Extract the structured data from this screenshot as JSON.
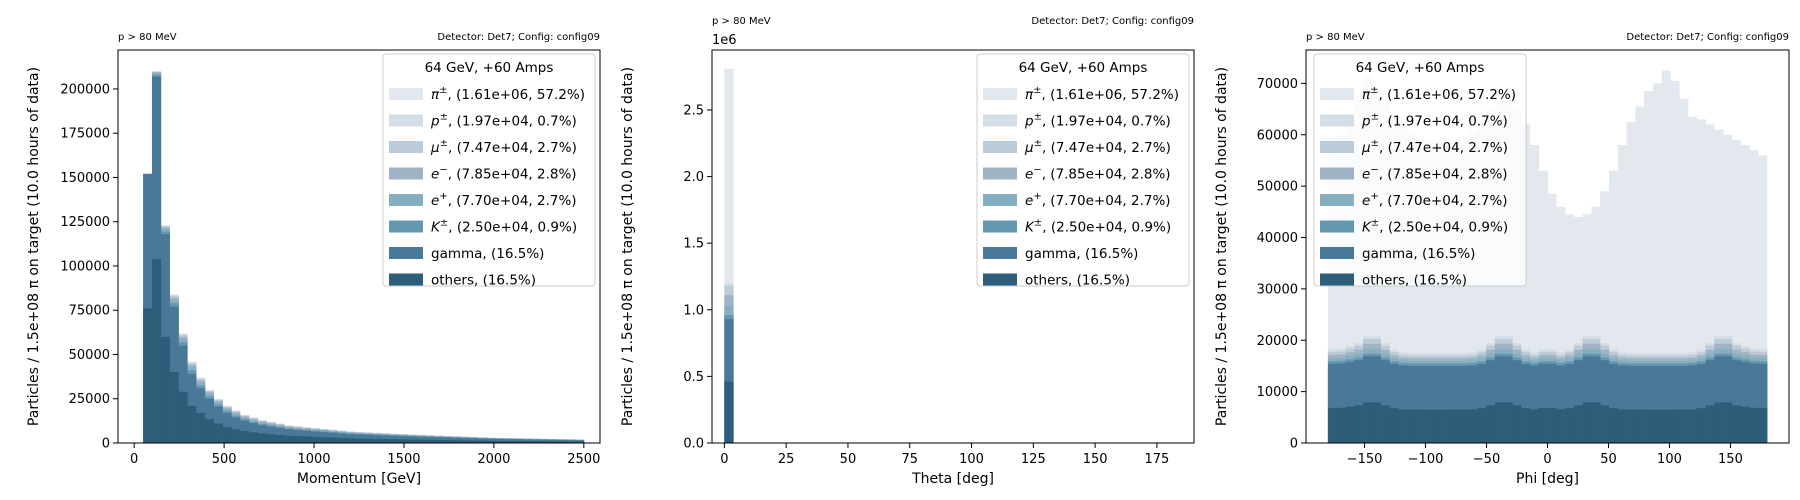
{
  "figure": {
    "legend_title": "64 GeV, +60 Amps",
    "corner_left": "p > 80 MeV",
    "corner_right": "Detector: Det7; Config: config09",
    "ylabel": "Particles / 1.5e+08 π on target (10.0 hours of data)"
  },
  "legend_entries": [
    {
      "sym": "π",
      "sup": "±",
      "text": ", (1.61e+06, 57.2%)",
      "color": "#e2e8ee"
    },
    {
      "sym": "p",
      "sup": "±",
      "text": ", (1.97e+04, 0.7%)",
      "color": "#d3dde6"
    },
    {
      "sym": "μ",
      "sup": "±",
      "text": ", (7.47e+04, 2.7%)",
      "color": "#bccbd8"
    },
    {
      "sym": "e",
      "sup": "−",
      "text": ", (7.85e+04, 2.8%)",
      "color": "#a0b3c6"
    },
    {
      "sym": "e",
      "sup": "+",
      "text": ", (7.70e+04, 2.7%)",
      "color": "#88afbf"
    },
    {
      "sym": "K",
      "sup": "±",
      "text": ", (2.50e+04, 0.9%)",
      "color": "#6497b0"
    },
    {
      "sym": "",
      "sup": "",
      "text": "gamma, (16.5%)",
      "color": "#4a7899"
    },
    {
      "sym": "",
      "sup": "",
      "text": "others, (16.5%)",
      "color": "#2d5d78"
    }
  ],
  "chart_data": [
    {
      "type": "bar",
      "stacked": true,
      "xlabel": "Momentum [GeV]",
      "xlim": [
        -90,
        2590
      ],
      "ylim": [
        0,
        222000
      ],
      "xticks": [
        0,
        500,
        1000,
        1500,
        2000,
        2500
      ],
      "yticks": [
        0,
        25000,
        50000,
        75000,
        100000,
        125000,
        150000,
        175000,
        200000
      ],
      "ytick_labels": [
        "0",
        "25000",
        "50000",
        "75000",
        "100000",
        "125000",
        "150000",
        "175000",
        "200000"
      ],
      "legend_position": "upper right",
      "bin_edges_start": 50,
      "bin_width": 49,
      "totals": [
        152000,
        210000,
        123000,
        84000,
        62000,
        46000,
        37000,
        30000,
        25000,
        21000,
        18500,
        16000,
        14500,
        13000,
        12000,
        11000,
        10000,
        9500,
        9000,
        8500,
        8000,
        7500,
        7000,
        6500,
        6200,
        6000,
        5700,
        5500,
        5200,
        5000,
        4800,
        4600,
        4400,
        4200,
        4000,
        3800,
        3600,
        3400,
        3200,
        3000,
        2900,
        2800,
        2700,
        2600,
        2500,
        2400,
        2300,
        2200,
        2100,
        2000
      ],
      "cumulative_layers": [
        {
          "name": "others",
          "values": [
            76000,
            104000,
            60000,
            40000,
            29000,
            21000,
            17000,
            13500,
            11000,
            9000,
            7800,
            6800,
            6000,
            5400,
            5000,
            4500,
            4100,
            3900,
            3700,
            3500,
            3300,
            3100,
            2900,
            2700,
            2550,
            2450,
            2350,
            2250,
            2150,
            2050,
            1950,
            1900,
            1800,
            1720,
            1650,
            1560,
            1480,
            1400,
            1320,
            1240,
            1190,
            1150,
            1110,
            1070,
            1030,
            990,
            950,
            900,
            860,
            820
          ]
        },
        {
          "name": "gamma",
          "values": [
            152000,
            207000,
            118000,
            77000,
            55000,
            39000,
            31000,
            25000,
            20500,
            17000,
            14500,
            12600,
            11200,
            10000,
            9300,
            8500,
            7700,
            7300,
            6900,
            6500,
            6150,
            5800,
            5400,
            5050,
            4800,
            4650,
            4400,
            4250,
            4050,
            3850,
            3700,
            3550,
            3400,
            3250,
            3100,
            2950,
            2800,
            2650,
            2500,
            2350,
            2250,
            2180,
            2100,
            2020,
            1950,
            1870,
            1790,
            1710,
            1640,
            1560
          ]
        },
        {
          "name": "K±",
          "values": [
            152000,
            208000,
            119500,
            79000,
            57000,
            41000,
            32500,
            26300,
            21700,
            18000,
            15400,
            13400,
            11900,
            10700,
            9900,
            9100,
            8200,
            7800,
            7400,
            7000,
            6600,
            6200,
            5800,
            5400,
            5150,
            4980,
            4720,
            4560,
            4340,
            4140,
            3970,
            3800,
            3650,
            3480,
            3320,
            3160,
            3000,
            2840,
            2680,
            2520,
            2420,
            2340,
            2250,
            2170,
            2090,
            2000,
            1920,
            1840,
            1760,
            1680
          ]
        },
        {
          "name": "e+",
          "values": [
            152000,
            209000,
            121000,
            81000,
            59000,
            43000,
            34300,
            27800,
            23000,
            19200,
            16500,
            14400,
            12900,
            11600,
            10700,
            9900,
            8900,
            8500,
            8050,
            7600,
            7150,
            6700,
            6250,
            5850,
            5580,
            5400,
            5120,
            4950,
            4700,
            4500,
            4310,
            4130,
            3960,
            3780,
            3600,
            3420,
            3250,
            3080,
            2900,
            2730,
            2620,
            2530,
            2440,
            2350,
            2260,
            2170,
            2080,
            1990,
            1900,
            1810
          ]
        },
        {
          "name": "e−",
          "values": [
            152000,
            209500,
            121800,
            82000,
            60000,
            44200,
            35300,
            28700,
            23800,
            19900,
            17200,
            15000,
            13500,
            12100,
            11200,
            10300,
            9300,
            8850,
            8400,
            7950,
            7500,
            7050,
            6600,
            6150,
            5870,
            5680,
            5390,
            5200,
            4940,
            4730,
            4530,
            4340,
            4160,
            3970,
            3780,
            3590,
            3410,
            3230,
            3040,
            2860,
            2740,
            2650,
            2560,
            2460,
            2370,
            2270,
            2180,
            2090,
            1990,
            1900
          ]
        },
        {
          "name": "μ±",
          "values": [
            152000,
            209800,
            122400,
            83000,
            61000,
            45100,
            36200,
            29400,
            24400,
            20500,
            17800,
            15500,
            14000,
            12550,
            11600,
            10650,
            9650,
            9180,
            8700,
            8230,
            7760,
            7290,
            6820,
            6350,
            6060,
            5860,
            5570,
            5380,
            5080,
            4870,
            4670,
            4470,
            4280,
            4090,
            3890,
            3700,
            3510,
            3320,
            3120,
            2930,
            2820,
            2720,
            2630,
            2530,
            2440,
            2330,
            2240,
            2140,
            2050,
            1950
          ]
        },
        {
          "name": "p±",
          "values": [
            152000,
            209900,
            122700,
            83500,
            61500,
            45600,
            36600,
            29700,
            24700,
            20750,
            18150,
            15750,
            14250,
            12780,
            11800,
            10830,
            9830,
            9340,
            8850,
            8370,
            7880,
            7400,
            6910,
            6430,
            6130,
            5930,
            5640,
            5440,
            5140,
            4930,
            4730,
            4530,
            4340,
            4140,
            3950,
            3750,
            3560,
            3360,
            3160,
            2970,
            2860,
            2760,
            2670,
            2570,
            2470,
            2370,
            2270,
            2170,
            2070,
            1980
          ]
        },
        {
          "name": "π±",
          "values": [
            152000,
            210000,
            123000,
            84000,
            62000,
            46000,
            37000,
            30000,
            25000,
            21000,
            18500,
            16000,
            14500,
            13000,
            12000,
            11000,
            10000,
            9500,
            9000,
            8500,
            8000,
            7500,
            7000,
            6500,
            6200,
            6000,
            5700,
            5500,
            5200,
            5000,
            4800,
            4600,
            4400,
            4200,
            4000,
            3800,
            3600,
            3400,
            3200,
            3000,
            2900,
            2800,
            2700,
            2600,
            2500,
            2400,
            2300,
            2200,
            2100,
            2000
          ]
        }
      ]
    },
    {
      "type": "bar",
      "stacked": true,
      "xlabel": "Theta [deg]",
      "xlim": [
        -5,
        190
      ],
      "ylim": [
        0,
        2950000
      ],
      "xticks": [
        0,
        25,
        50,
        75,
        100,
        125,
        150,
        175
      ],
      "yticks": [
        0,
        500000,
        1000000,
        1500000,
        2000000,
        2500000
      ],
      "ytick_labels": [
        "0.0",
        "0.5",
        "1.0",
        "1.5",
        "2.0",
        "2.5"
      ],
      "y_offset_label": "1e6",
      "legend_position": "upper right",
      "bin_edges_start": 0,
      "bin_width": 3.6,
      "cumulative_layers": [
        {
          "name": "others",
          "values": [
            460000
          ]
        },
        {
          "name": "gamma",
          "values": [
            930000
          ]
        },
        {
          "name": "K±",
          "values": [
            960000
          ]
        },
        {
          "name": "e+",
          "values": [
            1030000
          ]
        },
        {
          "name": "e−",
          "values": [
            1110000
          ]
        },
        {
          "name": "μ±",
          "values": [
            1180000
          ]
        },
        {
          "name": "p±",
          "values": [
            1200000
          ]
        },
        {
          "name": "π±",
          "values": [
            2810000
          ]
        }
      ]
    },
    {
      "type": "bar",
      "stacked": true,
      "xlabel": "Phi [deg]",
      "xlim": [
        -198,
        198
      ],
      "ylim": [
        0,
        76500
      ],
      "xticks": [
        -150,
        -100,
        -50,
        0,
        50,
        100,
        150
      ],
      "xtick_labels": [
        "−150",
        "−100",
        "−50",
        "0",
        "50",
        "100",
        "150"
      ],
      "yticks": [
        0,
        10000,
        20000,
        30000,
        40000,
        50000,
        60000,
        70000
      ],
      "ytick_labels": [
        "0",
        "10000",
        "20000",
        "30000",
        "40000",
        "50000",
        "60000",
        "70000"
      ],
      "legend_position": "upper left",
      "bin_edges_start": -180,
      "bin_width": 7.2,
      "note": "layer values per bin are generated from the shape parameters below",
      "shape": {
        "peaks_deg": [
          -144,
          -36,
          36,
          144
        ],
        "peak_width_deg": 14
      },
      "layer_base_and_peak": [
        {
          "name": "others",
          "base": 6500,
          "peak": 8000
        },
        {
          "name": "gamma",
          "base": 15000,
          "peak": 17000
        },
        {
          "name": "K±",
          "base": 15500,
          "peak": 17500
        },
        {
          "name": "e+",
          "base": 16000,
          "peak": 18500
        },
        {
          "name": "e−",
          "base": 16500,
          "peak": 19500
        },
        {
          "name": "μ±",
          "base": 17000,
          "peak": 20500
        },
        {
          "name": "p±",
          "base": 17500,
          "peak": 21000
        }
      ],
      "pi_total": [
        56000,
        60000,
        63000,
        67000,
        71500,
        69000,
        66000,
        64000,
        62000,
        60500,
        59000,
        58500,
        58000,
        58000,
        58500,
        59000,
        60500,
        63000,
        65000,
        66500,
        68500,
        65000,
        62000,
        58000,
        53000,
        48500,
        46000,
        44500,
        44000,
        44500,
        46000,
        49000,
        53000,
        58000,
        62500,
        65500,
        68500,
        70000,
        72500,
        70500,
        67000,
        63500,
        63000,
        62000,
        61000,
        60000,
        59000,
        58000,
        57000,
        56000
      ]
    }
  ]
}
